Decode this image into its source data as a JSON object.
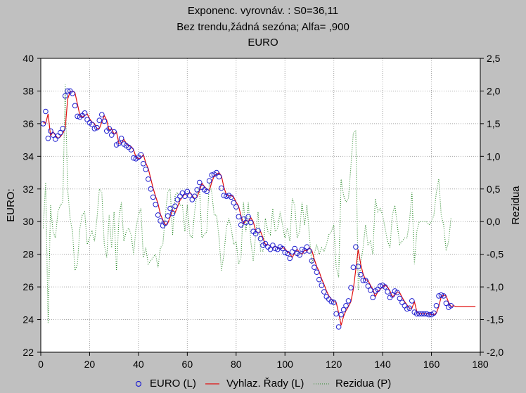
{
  "title": {
    "line1": "Exponenc. vyrovnáv. :  S0=36,11",
    "line2": "Bez trendu,žádná sezóna; Alfa=  ,900",
    "line3": "EURO"
  },
  "chart_data": {
    "type": "line",
    "title": "Exponenc. vyrovnáv. :  S0=36,11 / Bez trendu,žádná sezóna; Alfa=  ,900 / EURO",
    "xlabel": "",
    "ylabel": "EURO:",
    "y2label": "Rezidua",
    "xlim": [
      0,
      180
    ],
    "ylim": [
      22,
      40
    ],
    "y2lim": [
      -2.0,
      2.5
    ],
    "x_ticks": [
      "0",
      "20",
      "40",
      "60",
      "80",
      "100",
      "120",
      "140",
      "160",
      "180"
    ],
    "y_ticks": [
      "22",
      "24",
      "26",
      "28",
      "30",
      "32",
      "34",
      "36",
      "38",
      "40"
    ],
    "y2_ticks": [
      "-2,0",
      "-1,5",
      "-1,0",
      "-0,5",
      "0,0",
      "0,5",
      "1,0",
      "1,5",
      "2,0",
      "2,5"
    ],
    "grid": true,
    "legend_position": "bottom",
    "legend": [
      "EURO (L)",
      "Vyhlaz. Řady (L)",
      "Rezidua (P)"
    ],
    "series": [
      {
        "name": "EURO (L)",
        "axis": "left",
        "style": "circle-markers",
        "color": "#1f1fd0",
        "x_start": 1,
        "values": [
          36.0,
          36.75,
          35.1,
          35.55,
          35.3,
          35.05,
          35.25,
          35.45,
          35.7,
          37.7,
          38.0,
          38.0,
          37.85,
          37.1,
          36.45,
          36.4,
          36.5,
          36.65,
          36.25,
          36.05,
          35.95,
          35.7,
          35.75,
          36.2,
          36.55,
          36.15,
          35.55,
          35.7,
          35.3,
          35.5,
          34.7,
          34.8,
          35.1,
          34.75,
          34.65,
          34.55,
          34.4,
          33.9,
          33.85,
          33.95,
          34.1,
          33.55,
          33.2,
          32.6,
          32.0,
          31.5,
          31.05,
          30.4,
          30.05,
          29.75,
          29.9,
          30.35,
          30.8,
          30.5,
          30.95,
          31.35,
          31.55,
          31.75,
          31.55,
          31.85,
          31.6,
          31.35,
          31.55,
          31.95,
          32.4,
          32.1,
          31.95,
          31.85,
          32.5,
          32.85,
          32.9,
          33.0,
          32.75,
          32.05,
          31.6,
          31.55,
          31.6,
          31.5,
          31.15,
          30.9,
          30.3,
          29.8,
          30.15,
          29.95,
          30.3,
          29.95,
          29.4,
          29.25,
          29.45,
          28.95,
          28.55,
          28.65,
          28.45,
          28.3,
          28.55,
          28.35,
          28.3,
          28.45,
          28.35,
          28.1,
          28.05,
          27.75,
          28.15,
          28.35,
          28.05,
          27.95,
          28.3,
          28.2,
          28.45,
          28.2,
          27.6,
          27.2,
          26.9,
          26.45,
          26.1,
          25.7,
          25.4,
          25.25,
          25.1,
          25.05,
          24.35,
          23.55,
          24.3,
          24.6,
          24.85,
          25.15,
          25.95,
          27.2,
          28.45,
          27.25,
          26.75,
          26.4,
          26.4,
          26.05,
          25.8,
          25.35,
          25.75,
          25.85,
          26.05,
          26.1,
          26.0,
          25.7,
          25.35,
          25.5,
          25.75,
          25.65,
          25.3,
          25.05,
          24.85,
          24.65,
          24.7,
          25.15,
          24.45,
          24.35,
          24.35,
          24.35,
          24.35,
          24.35,
          24.3,
          24.3,
          24.4,
          24.85,
          25.45,
          25.5,
          25.45,
          25.0,
          24.75,
          24.85
        ]
      },
      {
        "name": "Vyhlaz. Řady (L)",
        "axis": "left",
        "style": "line",
        "color": "#e01010",
        "x_start": 1,
        "values": [
          36.1,
          36.0,
          36.6,
          35.25,
          35.5,
          35.3,
          35.1,
          35.2,
          35.4,
          35.7,
          37.5,
          37.95,
          38.0,
          37.9,
          37.2,
          36.5,
          36.4,
          36.5,
          36.6,
          36.3,
          36.1,
          36.0,
          35.7,
          35.7,
          36.1,
          36.5,
          36.2,
          35.6,
          35.7,
          35.35,
          35.5,
          34.8,
          34.8,
          35.05,
          34.8,
          34.65,
          34.6,
          34.4,
          33.95,
          33.85,
          33.9,
          34.1,
          33.6,
          33.25,
          32.65,
          32.05,
          31.55,
          31.1,
          30.45,
          30.1,
          29.8,
          29.9,
          30.3,
          30.7,
          30.55,
          30.9,
          31.3,
          31.5,
          31.7,
          31.6,
          31.8,
          31.6,
          31.4,
          31.5,
          31.9,
          32.35,
          32.15,
          32.0,
          31.9,
          32.4,
          32.8,
          32.9,
          33.0,
          32.8,
          32.1,
          31.65,
          31.55,
          31.6,
          31.5,
          31.2,
          30.95,
          30.35,
          29.85,
          30.1,
          30.0,
          30.25,
          30.0,
          29.45,
          29.3,
          29.4,
          29.0,
          28.6,
          28.6,
          28.5,
          28.35,
          28.5,
          28.4,
          28.3,
          28.4,
          28.35,
          28.15,
          28.05,
          27.8,
          28.1,
          28.3,
          28.1,
          28.0,
          28.25,
          28.2,
          28.4,
          28.25,
          27.7,
          27.25,
          26.95,
          26.5,
          26.15,
          25.75,
          25.45,
          25.25,
          25.1,
          25.05,
          24.4,
          23.65,
          24.2,
          24.55,
          24.8,
          25.1,
          25.85,
          27.05,
          28.3,
          27.4,
          26.8,
          26.45,
          26.4,
          26.1,
          25.85,
          25.4,
          25.7,
          25.85,
          26.0,
          26.1,
          26.0,
          25.75,
          25.4,
          25.5,
          25.7,
          25.65,
          25.35,
          25.1,
          24.9,
          24.7,
          24.7,
          25.1,
          24.5,
          24.35,
          24.35,
          24.35,
          24.35,
          24.35,
          24.3,
          24.3,
          24.4,
          24.8,
          25.4,
          25.5,
          25.45,
          25.05,
          24.8,
          24.85,
          24.8,
          24.8,
          24.8,
          24.8,
          24.8,
          24.8,
          24.8,
          24.8,
          24.8
        ]
      },
      {
        "name": "Rezidua (P)",
        "axis": "right",
        "style": "dotted-line",
        "color": "#2a8a2a",
        "x_start": 1,
        "values": [
          -0.1,
          0.6,
          -1.55,
          0.25,
          -0.15,
          -0.25,
          0.15,
          0.25,
          0.3,
          2.1,
          0.5,
          0.05,
          -0.15,
          -0.75,
          -0.65,
          -0.1,
          0.1,
          0.15,
          -0.35,
          -0.25,
          -0.15,
          -0.3,
          0.05,
          0.5,
          0.45,
          -0.35,
          -0.55,
          0.1,
          -0.4,
          0.15,
          -0.75,
          0.05,
          0.3,
          -0.3,
          -0.15,
          -0.1,
          -0.2,
          -0.5,
          -0.1,
          0.1,
          0.2,
          -0.55,
          -0.4,
          -0.65,
          -0.6,
          -0.55,
          -0.5,
          -0.7,
          -0.4,
          -0.35,
          0.1,
          0.45,
          0.5,
          -0.2,
          0.4,
          0.45,
          0.25,
          0.25,
          -0.15,
          0.25,
          -0.2,
          -0.25,
          0.15,
          0.45,
          0.5,
          -0.25,
          -0.2,
          -0.15,
          0.6,
          0.45,
          0.1,
          0.1,
          -0.25,
          -0.75,
          -0.5,
          -0.1,
          0.05,
          -0.1,
          -0.35,
          -0.3,
          -0.65,
          -0.55,
          0.3,
          -0.15,
          0.3,
          -0.3,
          -0.6,
          -0.2,
          0.15,
          -0.45,
          -0.45,
          0.05,
          -0.15,
          -0.2,
          0.2,
          -0.15,
          -0.1,
          0.15,
          -0.05,
          -0.25,
          -0.1,
          -0.3,
          0.35,
          0.25,
          -0.25,
          -0.15,
          0.3,
          -0.05,
          0.25,
          -0.2,
          -0.65,
          -0.5,
          -0.35,
          -0.5,
          -0.4,
          -0.45,
          -0.35,
          -0.2,
          -0.15,
          -0.05,
          -0.7,
          -0.85,
          0.65,
          0.4,
          0.3,
          0.35,
          0.85,
          1.35,
          1.4,
          -1.05,
          -0.65,
          -0.4,
          -0.05,
          -0.35,
          -0.3,
          -0.5,
          0.35,
          0.15,
          0.2,
          0.1,
          -0.1,
          -0.3,
          -0.4,
          0.1,
          0.25,
          -0.05,
          -0.35,
          -0.3,
          -0.25,
          -0.25,
          0.0,
          0.45,
          -0.65,
          -0.15,
          0.0,
          0.0,
          0.0,
          0.0,
          -0.05,
          0.0,
          0.1,
          0.45,
          0.65,
          0.1,
          -0.05,
          -0.45,
          -0.3,
          0.05
        ]
      }
    ]
  }
}
